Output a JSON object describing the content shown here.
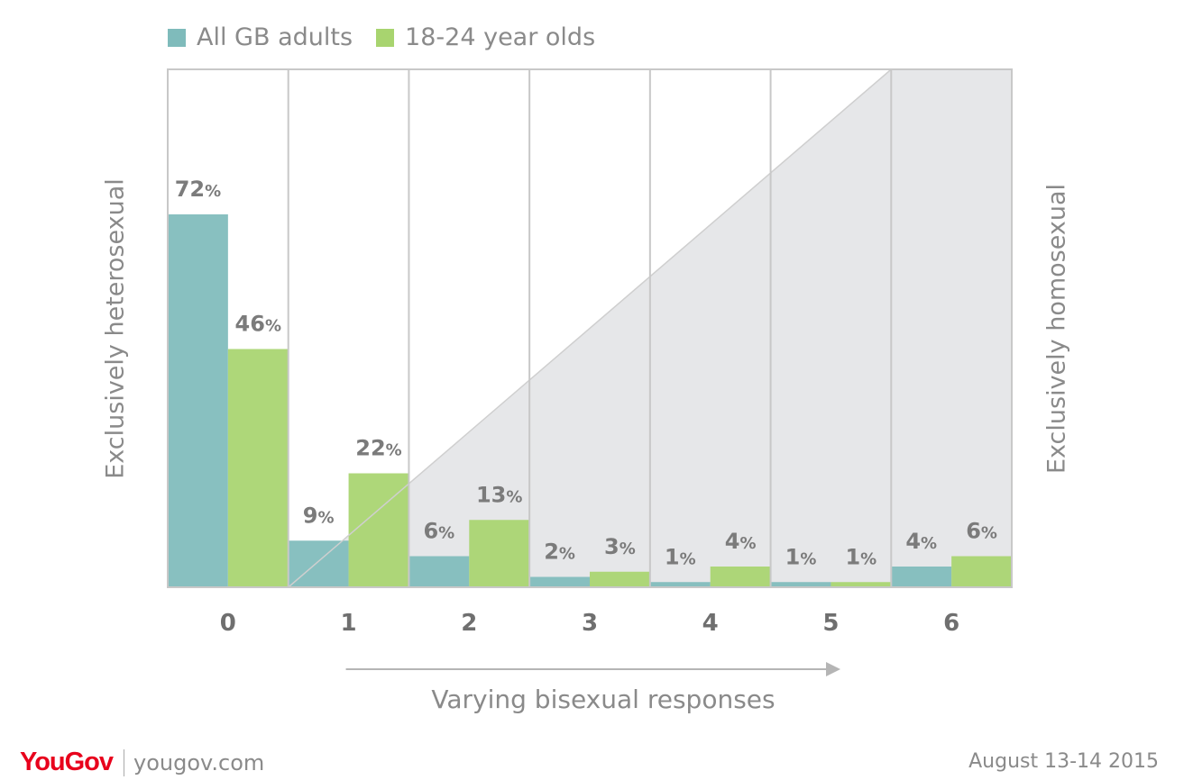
{
  "colors": {
    "all_adults": "#7fbbbb",
    "young": "#a8d46f",
    "text": "#8a8a8a",
    "value_label": "#7b7b7b",
    "shade": "#e6e7e9",
    "grid": "#c8c8c8",
    "brand": "#e8001c"
  },
  "legend": [
    {
      "label": "All GB adults",
      "color": "#7fbbbb"
    },
    {
      "label": "18-24 year olds",
      "color": "#a8d46f"
    }
  ],
  "side_labels": {
    "left": "Exclusively heterosexual",
    "right": "Exclusively homosexual"
  },
  "x_caption": "Varying bisexual responses",
  "footer": {
    "brand": "YouGov",
    "site": "yougov.com",
    "date": "August 13-14 2015"
  },
  "chart_data": {
    "type": "bar",
    "categories": [
      "0",
      "1",
      "2",
      "3",
      "4",
      "5",
      "6"
    ],
    "series": [
      {
        "name": "All GB adults",
        "values": [
          72,
          9,
          6,
          2,
          1,
          1,
          4
        ]
      },
      {
        "name": "18-24 year olds",
        "values": [
          46,
          22,
          13,
          3,
          4,
          1,
          6
        ]
      }
    ],
    "value_suffix": "%",
    "ylim": [
      0,
      100
    ],
    "xlabel": "Varying bisexual responses",
    "ylabel": "",
    "legend_position": "top-left",
    "grid": true
  }
}
